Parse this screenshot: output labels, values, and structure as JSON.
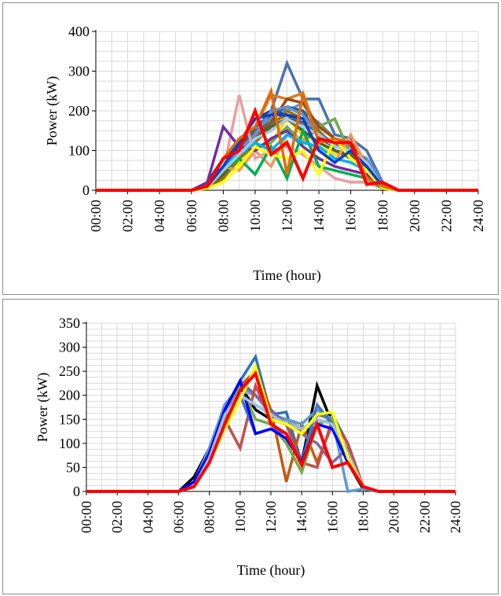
{
  "chart_data": [
    {
      "type": "line",
      "title": "",
      "xlabel": "Time (hour)",
      "ylabel": "Power (kW)",
      "ylim": [
        0,
        400
      ],
      "yticks": [
        0,
        100,
        200,
        300,
        400
      ],
      "x_tick_labels": [
        "00:00",
        "02:00",
        "04:00",
        "06:00",
        "08:00",
        "10:00",
        "12:00",
        "14:00",
        "16:00",
        "18:00",
        "20:00",
        "22:00",
        "24:00"
      ],
      "x_hours": [
        0,
        1,
        2,
        3,
        4,
        5,
        6,
        7,
        8,
        9,
        10,
        11,
        12,
        13,
        14,
        15,
        16,
        17,
        18,
        19,
        20,
        21,
        22,
        23,
        24
      ],
      "grid": true,
      "legend": "none",
      "series": [
        {
          "color": "#4a72b0",
          "values": [
            0,
            0,
            0,
            0,
            0,
            0,
            0,
            10,
            40,
            90,
            150,
            200,
            320,
            230,
            230,
            140,
            130,
            100,
            20,
            0,
            0,
            0,
            0,
            0,
            0
          ]
        },
        {
          "color": "#e07b1a",
          "values": [
            0,
            0,
            0,
            0,
            0,
            0,
            0,
            15,
            60,
            110,
            160,
            240,
            230,
            245,
            130,
            120,
            110,
            60,
            15,
            0,
            0,
            0,
            0,
            0,
            0
          ]
        },
        {
          "color": "#7f7f7f",
          "values": [
            0,
            0,
            0,
            0,
            0,
            0,
            0,
            5,
            30,
            80,
            140,
            180,
            210,
            200,
            170,
            130,
            110,
            70,
            10,
            0,
            0,
            0,
            0,
            0,
            0
          ]
        },
        {
          "color": "#ffd700",
          "values": [
            0,
            0,
            0,
            0,
            0,
            0,
            0,
            5,
            40,
            70,
            100,
            120,
            180,
            140,
            120,
            90,
            90,
            60,
            10,
            0,
            0,
            0,
            0,
            0,
            0
          ]
        },
        {
          "color": "#5b9bd5",
          "values": [
            0,
            0,
            0,
            0,
            0,
            0,
            0,
            10,
            50,
            100,
            150,
            190,
            200,
            220,
            150,
            110,
            100,
            80,
            20,
            0,
            0,
            0,
            0,
            0,
            0
          ]
        },
        {
          "color": "#70ad47",
          "values": [
            0,
            0,
            0,
            0,
            0,
            0,
            0,
            10,
            40,
            80,
            110,
            120,
            160,
            120,
            160,
            180,
            90,
            50,
            10,
            0,
            0,
            0,
            0,
            0,
            0
          ]
        },
        {
          "color": "#264478",
          "values": [
            0,
            0,
            0,
            0,
            0,
            0,
            0,
            20,
            80,
            120,
            180,
            200,
            190,
            160,
            140,
            110,
            100,
            60,
            10,
            0,
            0,
            0,
            0,
            0,
            0
          ]
        },
        {
          "color": "#9e480e",
          "values": [
            0,
            0,
            0,
            0,
            0,
            0,
            0,
            10,
            50,
            90,
            130,
            170,
            230,
            220,
            160,
            130,
            120,
            70,
            15,
            0,
            0,
            0,
            0,
            0,
            0
          ]
        },
        {
          "color": "#636363",
          "values": [
            0,
            0,
            0,
            0,
            0,
            0,
            0,
            5,
            40,
            100,
            150,
            170,
            190,
            170,
            140,
            120,
            90,
            60,
            10,
            0,
            0,
            0,
            0,
            0,
            0
          ]
        },
        {
          "color": "#997300",
          "values": [
            0,
            0,
            0,
            0,
            0,
            0,
            0,
            5,
            30,
            80,
            120,
            160,
            200,
            180,
            150,
            100,
            80,
            50,
            10,
            0,
            0,
            0,
            0,
            0,
            0
          ]
        },
        {
          "color": "#255e91",
          "values": [
            0,
            0,
            0,
            0,
            0,
            0,
            0,
            10,
            60,
            110,
            160,
            190,
            210,
            200,
            130,
            110,
            100,
            70,
            15,
            0,
            0,
            0,
            0,
            0,
            0
          ]
        },
        {
          "color": "#43682b",
          "values": [
            0,
            0,
            0,
            0,
            0,
            0,
            0,
            5,
            40,
            90,
            130,
            160,
            180,
            150,
            120,
            100,
            90,
            60,
            10,
            0,
            0,
            0,
            0,
            0,
            0
          ]
        },
        {
          "color": "#698ed0",
          "values": [
            0,
            0,
            0,
            0,
            0,
            0,
            0,
            10,
            50,
            100,
            140,
            200,
            210,
            190,
            140,
            110,
            100,
            70,
            10,
            0,
            0,
            0,
            0,
            0,
            0
          ]
        },
        {
          "color": "#f1975a",
          "values": [
            0,
            0,
            0,
            0,
            0,
            0,
            0,
            10,
            60,
            50,
            100,
            60,
            140,
            130,
            100,
            70,
            140,
            60,
            10,
            0,
            0,
            0,
            0,
            0,
            0
          ]
        },
        {
          "color": "#e6a0a0",
          "values": [
            0,
            0,
            0,
            0,
            0,
            0,
            0,
            5,
            50,
            240,
            80,
            100,
            110,
            90,
            60,
            30,
            20,
            20,
            5,
            0,
            0,
            0,
            0,
            0,
            0
          ]
        },
        {
          "color": "#7030a0",
          "values": [
            0,
            0,
            0,
            0,
            0,
            0,
            0,
            20,
            160,
            110,
            100,
            130,
            150,
            110,
            80,
            60,
            50,
            40,
            10,
            0,
            0,
            0,
            0,
            0,
            0
          ]
        },
        {
          "color": "#00b050",
          "values": [
            0,
            0,
            0,
            0,
            0,
            0,
            0,
            10,
            50,
            80,
            40,
            110,
            30,
            150,
            60,
            50,
            40,
            30,
            5,
            0,
            0,
            0,
            0,
            0,
            0
          ]
        },
        {
          "color": "#00b0f0",
          "values": [
            0,
            0,
            0,
            0,
            0,
            0,
            0,
            10,
            60,
            90,
            120,
            100,
            140,
            120,
            110,
            80,
            70,
            50,
            10,
            0,
            0,
            0,
            0,
            0,
            0
          ]
        },
        {
          "color": "#a5c8e8",
          "values": [
            0,
            0,
            0,
            0,
            0,
            0,
            0,
            10,
            50,
            90,
            130,
            150,
            180,
            160,
            140,
            110,
            100,
            70,
            10,
            0,
            0,
            0,
            0,
            0,
            0
          ]
        },
        {
          "color": "#ffff00",
          "values": [
            0,
            0,
            0,
            0,
            0,
            0,
            0,
            5,
            20,
            60,
            110,
            90,
            80,
            100,
            40,
            130,
            80,
            50,
            5,
            0,
            0,
            0,
            0,
            0,
            0
          ]
        },
        {
          "color": "#0b3ecf",
          "values": [
            0,
            0,
            0,
            0,
            0,
            0,
            0,
            10,
            60,
            120,
            180,
            190,
            190,
            180,
            100,
            70,
            100,
            60,
            10,
            0,
            0,
            0,
            0,
            0,
            0
          ]
        },
        {
          "color": "#e26b0a",
          "values": [
            0,
            0,
            0,
            0,
            0,
            0,
            0,
            10,
            80,
            130,
            160,
            250,
            40,
            240,
            120,
            130,
            120,
            30,
            10,
            0,
            0,
            0,
            0,
            0,
            0
          ]
        },
        {
          "color": "#ff0000",
          "values": [
            0,
            0,
            0,
            0,
            0,
            0,
            0,
            10,
            80,
            100,
            200,
            90,
            120,
            30,
            130,
            120,
            120,
            15,
            20,
            0,
            0,
            0,
            0,
            0,
            0
          ]
        }
      ]
    },
    {
      "type": "line",
      "title": "",
      "xlabel": "Time (hour)",
      "ylabel": "Power (kW)",
      "ylim": [
        0,
        350
      ],
      "yticks": [
        0,
        50,
        100,
        150,
        200,
        250,
        300,
        350
      ],
      "x_tick_labels": [
        "00:00",
        "02:00",
        "04:00",
        "06:00",
        "08:00",
        "10:00",
        "12:00",
        "14:00",
        "16:00",
        "18:00",
        "20:00",
        "22:00",
        "24:00"
      ],
      "x_hours": [
        0,
        1,
        2,
        3,
        4,
        5,
        6,
        7,
        8,
        9,
        10,
        11,
        12,
        13,
        14,
        15,
        16,
        17,
        18,
        19,
        20,
        21,
        22,
        23,
        24
      ],
      "grid": true,
      "legend": "none",
      "series": [
        {
          "color": "#2e75b6",
          "values": [
            0,
            0,
            0,
            0,
            0,
            0,
            0,
            20,
            80,
            170,
            230,
            280,
            160,
            165,
            60,
            160,
            160,
            100,
            10,
            0,
            0,
            0,
            0,
            0,
            0
          ]
        },
        {
          "color": "#000000",
          "values": [
            0,
            0,
            0,
            0,
            0,
            0,
            0,
            30,
            90,
            180,
            220,
            170,
            150,
            140,
            60,
            220,
            140,
            60,
            5,
            0,
            0,
            0,
            0,
            0,
            0
          ]
        },
        {
          "color": "#7f7f7f",
          "values": [
            0,
            0,
            0,
            0,
            0,
            0,
            0,
            20,
            80,
            160,
            200,
            180,
            160,
            150,
            120,
            160,
            150,
            100,
            10,
            0,
            0,
            0,
            0,
            0,
            0
          ]
        },
        {
          "color": "#c55a11",
          "values": [
            0,
            0,
            0,
            0,
            0,
            0,
            0,
            10,
            60,
            150,
            220,
            250,
            170,
            20,
            140,
            60,
            140,
            80,
            10,
            0,
            0,
            0,
            0,
            0,
            0
          ]
        },
        {
          "color": "#a5a5a5",
          "values": [
            0,
            0,
            0,
            0,
            0,
            0,
            0,
            10,
            70,
            160,
            210,
            200,
            160,
            150,
            130,
            140,
            130,
            90,
            10,
            0,
            0,
            0,
            0,
            0,
            0
          ]
        },
        {
          "color": "#5b9bd5",
          "values": [
            0,
            0,
            0,
            0,
            0,
            0,
            0,
            20,
            90,
            180,
            220,
            200,
            160,
            150,
            140,
            170,
            150,
            0,
            5,
            0,
            0,
            0,
            0,
            0,
            0
          ]
        },
        {
          "color": "#8064a2",
          "values": [
            0,
            0,
            0,
            0,
            0,
            0,
            0,
            10,
            60,
            160,
            230,
            200,
            170,
            140,
            120,
            100,
            60,
            90,
            10,
            0,
            0,
            0,
            0,
            0,
            0
          ]
        },
        {
          "color": "#c0504d",
          "values": [
            0,
            0,
            0,
            0,
            0,
            0,
            0,
            10,
            70,
            150,
            90,
            220,
            150,
            140,
            60,
            50,
            150,
            100,
            10,
            0,
            0,
            0,
            0,
            0,
            0
          ]
        },
        {
          "color": "#70ad47",
          "values": [
            0,
            0,
            0,
            0,
            0,
            0,
            0,
            20,
            80,
            170,
            220,
            150,
            140,
            100,
            40,
            140,
            150,
            60,
            10,
            0,
            0,
            0,
            0,
            0,
            0
          ]
        },
        {
          "color": "#4472c4",
          "values": [
            0,
            0,
            0,
            0,
            0,
            0,
            0,
            20,
            80,
            160,
            200,
            120,
            130,
            120,
            60,
            180,
            140,
            70,
            10,
            0,
            0,
            0,
            0,
            0,
            0
          ]
        },
        {
          "color": "#0000ff",
          "values": [
            0,
            0,
            0,
            0,
            0,
            0,
            0,
            20,
            80,
            170,
            230,
            120,
            130,
            110,
            60,
            140,
            130,
            60,
            10,
            0,
            0,
            0,
            0,
            0,
            0
          ]
        },
        {
          "color": "#9dc3e6",
          "values": [
            0,
            0,
            0,
            0,
            0,
            0,
            0,
            10,
            70,
            160,
            200,
            180,
            160,
            140,
            130,
            150,
            140,
            80,
            10,
            0,
            0,
            0,
            0,
            0,
            0
          ]
        },
        {
          "color": "#ffff00",
          "values": [
            0,
            0,
            0,
            0,
            0,
            0,
            0,
            10,
            60,
            130,
            190,
            260,
            150,
            140,
            120,
            160,
            165,
            70,
            10,
            0,
            0,
            0,
            0,
            0,
            0
          ]
        },
        {
          "color": "#ff0000",
          "values": [
            0,
            0,
            0,
            0,
            0,
            0,
            0,
            10,
            60,
            140,
            210,
            245,
            140,
            120,
            55,
            140,
            50,
            60,
            10,
            0,
            0,
            0,
            0,
            0,
            0
          ]
        }
      ]
    }
  ]
}
